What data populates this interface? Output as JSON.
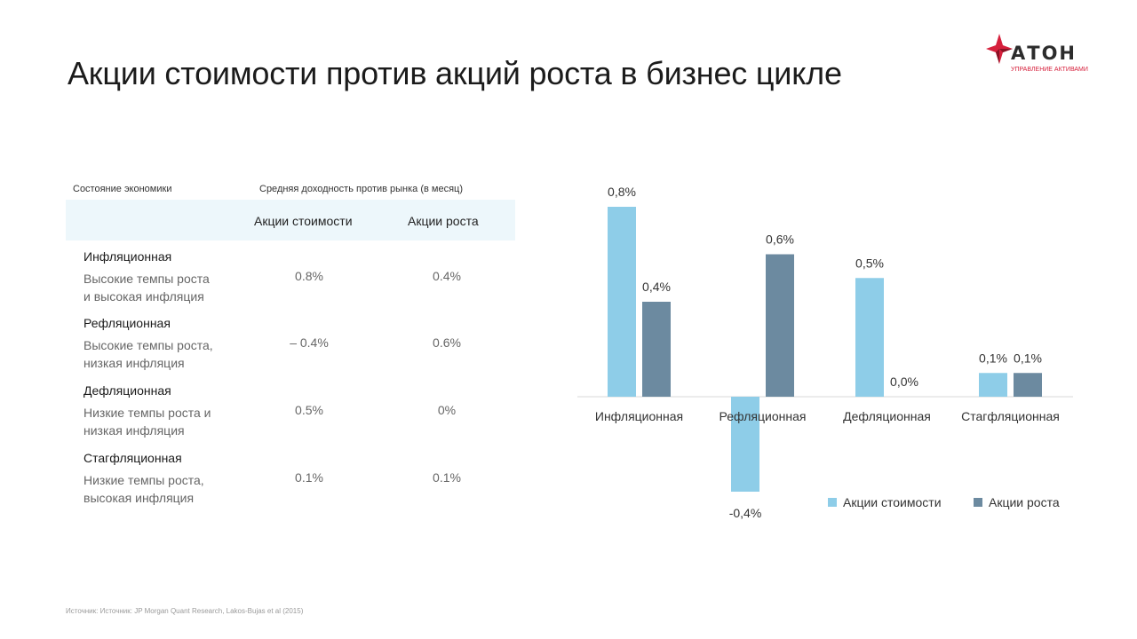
{
  "slide": {
    "title": "Акции стоимости против акций роста в бизнес цикле",
    "source": "Источник:  Источник:  JP Morgan Quant Research,  Lakos-Bujas et al (2015)"
  },
  "logo": {
    "word": "АТОН",
    "subtitle": "УПРАВЛЕНИЕ АКТИВАМИ",
    "colors": {
      "red": "#d6203c",
      "dark": "#2c2c2c"
    }
  },
  "table": {
    "header_left": "Состояние экономики",
    "header_right": "Средняя доходность  против рынка  (в месяц)",
    "columns": [
      "Акции стоимости",
      "Акции роста"
    ],
    "rows": [
      {
        "title": "Инфляционная",
        "desc1": "Высокие темпы роста",
        "desc2": "и высокая инфляция",
        "value": "0.8%",
        "growth": "0.4%"
      },
      {
        "title": "Рефляционная",
        "desc1": "Высокие темпы роста,",
        "desc2": "низкая инфляция",
        "value": "– 0.4%",
        "growth": "0.6%"
      },
      {
        "title": "Дефляционная",
        "desc1": "Низкие темпы роста и",
        "desc2": "низкая инфляция",
        "value": "0.5%",
        "growth": "0%"
      },
      {
        "title": "Стагфляционная",
        "desc1": "Низкие темпы роста,",
        "desc2": "высокая инфляция",
        "value": "0.1%",
        "growth": "0.1%"
      }
    ]
  },
  "chart_data": {
    "type": "bar",
    "categories": [
      "Инфляционная",
      "Рефляционная",
      "Дефляционная",
      "Стагфляционная"
    ],
    "series": [
      {
        "name": "Акции стоимости",
        "values": [
          0.8,
          -0.4,
          0.5,
          0.1
        ],
        "labels": [
          "0,8%",
          "-0,4%",
          "0,5%",
          "0,1%"
        ],
        "color": "#8ecde8"
      },
      {
        "name": "Акции роста",
        "values": [
          0.4,
          0.6,
          0.0,
          0.1
        ],
        "labels": [
          "0,4%",
          "0,6%",
          "0,0%",
          "0,1%"
        ],
        "color": "#6c8aa0"
      }
    ],
    "ylim": [
      -0.4,
      0.8
    ],
    "grid": false,
    "legend": "bottom-right"
  }
}
